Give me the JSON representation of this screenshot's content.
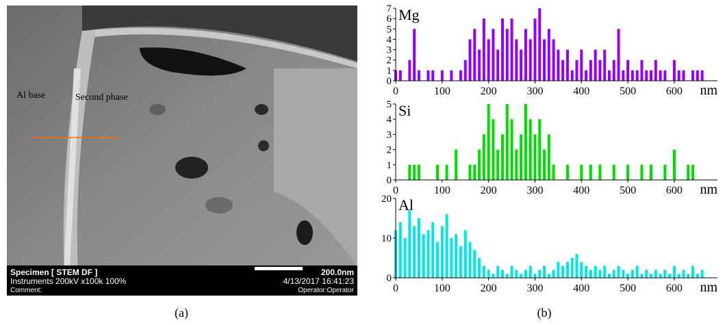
{
  "panel_a": {
    "labels": [
      "Al base",
      "Second phase"
    ],
    "info_bar": {
      "specimen": "Specimen [ STEM DF ]",
      "instruments": "Instruments 200kV x100k 100%",
      "comment": "Comment:",
      "scale": "200.0nm",
      "datetime": "4/13/2017 16:41:23",
      "operator": "Operator:Operator"
    },
    "caption": "(a)"
  },
  "panel_b": {
    "caption": "(b)"
  },
  "chart_data": [
    {
      "type": "bar",
      "title": "Mg",
      "x_label": "nm",
      "color": "#9400ff",
      "x": [
        0,
        10,
        20,
        30,
        40,
        50,
        60,
        70,
        80,
        90,
        100,
        110,
        120,
        130,
        140,
        150,
        160,
        170,
        180,
        190,
        200,
        210,
        220,
        230,
        240,
        250,
        260,
        270,
        280,
        290,
        300,
        310,
        320,
        330,
        340,
        350,
        360,
        370,
        380,
        390,
        400,
        410,
        420,
        430,
        440,
        450,
        460,
        470,
        480,
        490,
        500,
        510,
        520,
        530,
        540,
        550,
        560,
        570,
        580,
        590,
        600,
        610,
        620,
        630,
        640,
        650,
        660
      ],
      "values": [
        1,
        1,
        0,
        2,
        5,
        1,
        0,
        1,
        1,
        0,
        1,
        0,
        1,
        0,
        1,
        2,
        4,
        5,
        3,
        6,
        4,
        5,
        3,
        6,
        5,
        6,
        4,
        3,
        5,
        4,
        6,
        7,
        4,
        5,
        4,
        3,
        2,
        3,
        1,
        2,
        3,
        1,
        2,
        3,
        2,
        3,
        1,
        2,
        5,
        1,
        2,
        1,
        1,
        2,
        1,
        1,
        2,
        1,
        1,
        0,
        2,
        1,
        1,
        0,
        1,
        1,
        1
      ],
      "xlim": [
        0,
        693
      ],
      "ylim": [
        0,
        7
      ],
      "xticks": [
        0,
        100,
        200,
        300,
        400,
        500,
        600
      ],
      "yticks": [
        0,
        1,
        2,
        3,
        4,
        5,
        6,
        7
      ]
    },
    {
      "type": "bar",
      "title": "Si",
      "x_label": "nm",
      "color": "#00dd00",
      "x": [
        0,
        10,
        20,
        30,
        40,
        50,
        60,
        70,
        80,
        90,
        100,
        110,
        120,
        130,
        140,
        150,
        160,
        170,
        180,
        190,
        200,
        210,
        220,
        230,
        240,
        250,
        260,
        270,
        280,
        290,
        300,
        310,
        320,
        330,
        340,
        350,
        360,
        370,
        380,
        390,
        400,
        410,
        420,
        430,
        440,
        450,
        460,
        470,
        480,
        490,
        500,
        510,
        520,
        530,
        540,
        550,
        560,
        570,
        580,
        590,
        600,
        610,
        620,
        630,
        640,
        650,
        660
      ],
      "values": [
        0,
        0,
        0,
        1,
        1,
        1,
        0,
        0,
        0,
        1,
        0,
        1,
        0,
        2,
        0,
        0,
        1,
        1,
        2,
        3,
        5,
        4,
        2,
        3,
        5,
        4,
        2,
        3,
        5,
        4,
        3,
        4,
        2,
        3,
        1,
        0,
        0,
        1,
        0,
        0,
        1,
        0,
        1,
        0,
        1,
        0,
        0,
        1,
        0,
        0,
        1,
        0,
        0,
        1,
        0,
        1,
        0,
        0,
        1,
        0,
        2,
        0,
        0,
        1,
        1,
        0,
        0
      ],
      "xlim": [
        0,
        693
      ],
      "ylim": [
        0,
        5
      ],
      "xticks": [
        0,
        100,
        200,
        300,
        400,
        500,
        600
      ],
      "yticks": [
        0,
        1,
        2,
        3,
        4,
        5
      ]
    },
    {
      "type": "bar",
      "title": "Al",
      "x_label": "nm",
      "color": "#00e5e5",
      "x": [
        0,
        10,
        20,
        30,
        40,
        50,
        60,
        70,
        80,
        90,
        100,
        110,
        120,
        130,
        140,
        150,
        160,
        170,
        180,
        190,
        200,
        210,
        220,
        230,
        240,
        250,
        260,
        270,
        280,
        290,
        300,
        310,
        320,
        330,
        340,
        350,
        360,
        370,
        380,
        390,
        400,
        410,
        420,
        430,
        440,
        450,
        460,
        470,
        480,
        490,
        500,
        510,
        520,
        530,
        540,
        550,
        560,
        570,
        580,
        590,
        600,
        610,
        620,
        630,
        640,
        650,
        660
      ],
      "values": [
        12,
        14,
        10,
        17,
        13,
        15,
        11,
        12,
        14,
        9,
        13,
        16,
        10,
        11,
        8,
        12,
        9,
        7,
        5,
        3,
        2,
        1,
        3,
        2,
        1,
        3,
        2,
        1,
        2,
        3,
        1,
        2,
        3,
        1,
        2,
        4,
        3,
        4,
        5,
        6,
        4,
        3,
        2,
        3,
        2,
        3,
        1,
        2,
        3,
        2,
        1,
        2,
        3,
        1,
        2,
        1,
        2,
        1,
        2,
        1,
        3,
        1,
        2,
        1,
        3,
        1,
        2
      ],
      "xlim": [
        0,
        693
      ],
      "ylim": [
        0,
        20
      ],
      "xticks": [
        0,
        100,
        200,
        300,
        400,
        500,
        600
      ],
      "yticks": [
        0,
        10,
        20
      ]
    }
  ]
}
